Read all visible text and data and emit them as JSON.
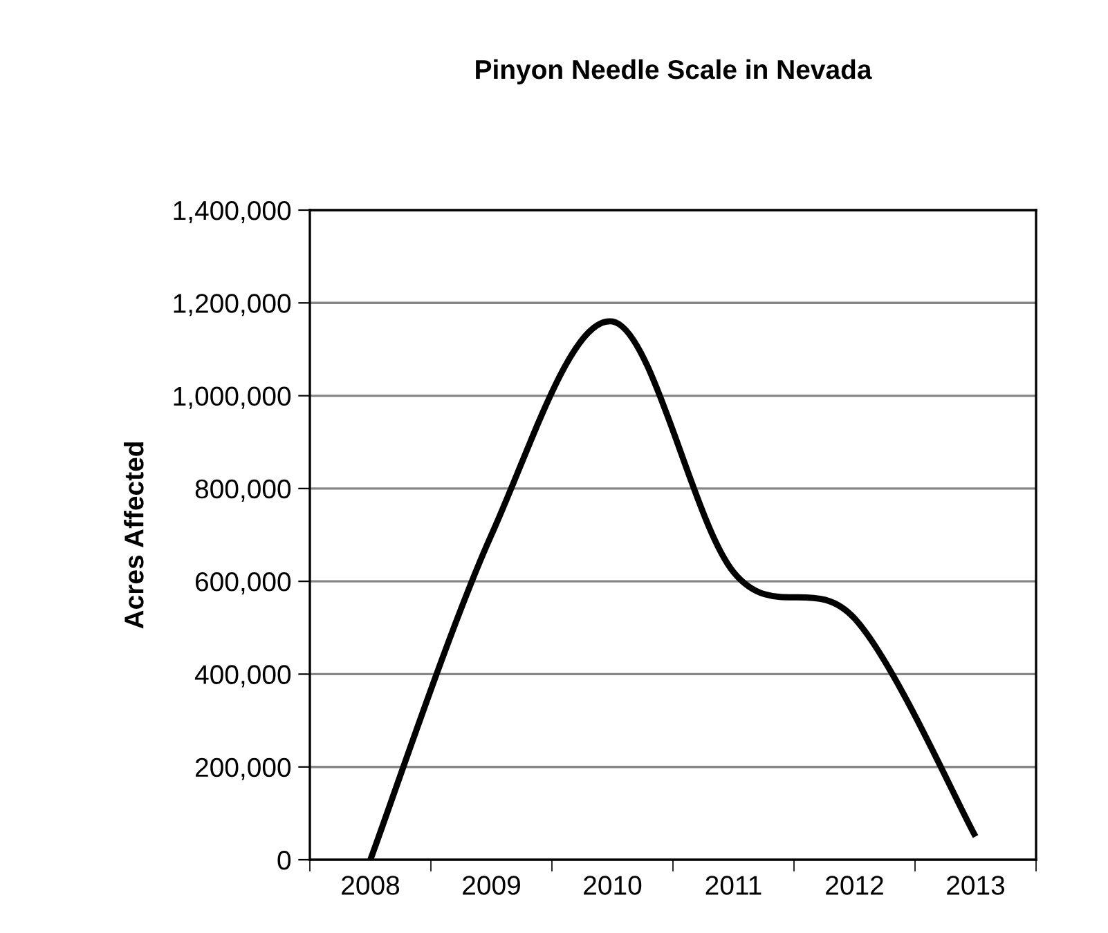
{
  "chart_data": {
    "type": "line",
    "title": "Pinyon Needle Scale in Nevada",
    "ylabel": "Acres Affected",
    "categories": [
      "2008",
      "2009",
      "2010",
      "2011",
      "2012",
      "2013"
    ],
    "series": [
      {
        "color": "#000000",
        "values": [
          0,
          700000,
          1160000,
          620000,
          520000,
          50000
        ]
      }
    ],
    "ylim": [
      0,
      1400000
    ],
    "yticks": [
      {
        "value": 0,
        "label": "0"
      },
      {
        "value": 200000,
        "label": "200,000"
      },
      {
        "value": 400000,
        "label": "400,000"
      },
      {
        "value": 600000,
        "label": "600,000"
      },
      {
        "value": 800000,
        "label": "800,000"
      },
      {
        "value": 1000000,
        "label": "1,000,000"
      },
      {
        "value": 1200000,
        "label": "1,200,000"
      },
      {
        "value": 1400000,
        "label": "1,400,000"
      }
    ],
    "grid": "y",
    "line_style": "solid"
  }
}
